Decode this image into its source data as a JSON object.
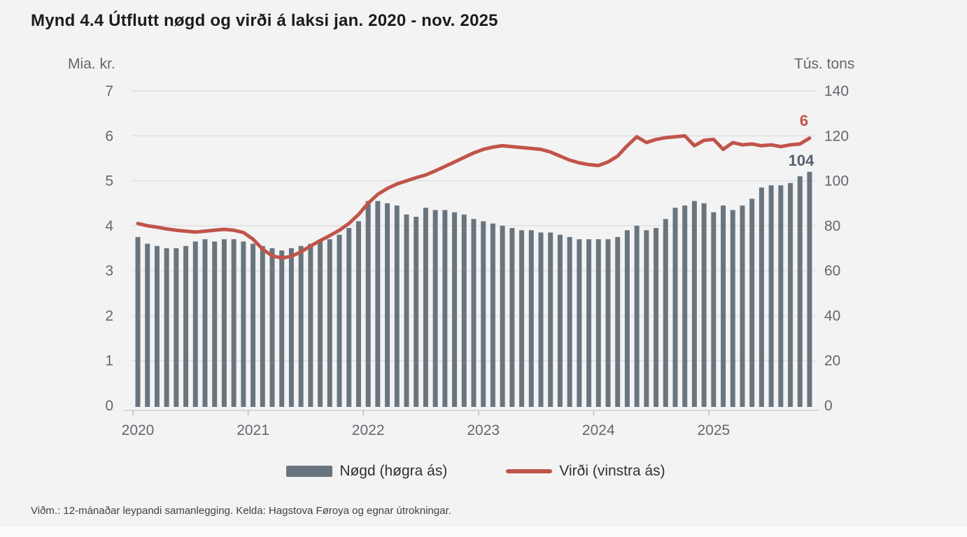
{
  "title": "Mynd 4.4 Útflutt nøgd og virði á laksi jan. 2020 - nov. 2025",
  "footnote": "Viðm.: 12-mánaðar leypandi samanlegging. Kelda: Hagstova Føroya og egnar útrokningar.",
  "colors": {
    "background": "#f3f3f4",
    "grid": "#e4e4e6",
    "baseline": "#d7d7d9",
    "bar": "#69757e",
    "line": "#c1544a",
    "tick_text": "#63676c",
    "bar_end_label": "#56616e",
    "line_end_label": "#c1544a"
  },
  "chart_data": {
    "type": "bar+line combo",
    "title": "Mynd 4.4 Útflutt nøgd og virði á laksi jan. 2020 - nov. 2025",
    "period": "jan. 2020 - nov. 2025",
    "months_count": 71,
    "x_year_labels": [
      "2020",
      "2021",
      "2022",
      "2023",
      "2024",
      "2025"
    ],
    "left_axis": {
      "label": "Mia. kr.",
      "range": [
        0,
        7
      ],
      "ticks": [
        0,
        1,
        2,
        3,
        4,
        5,
        6,
        7
      ]
    },
    "right_axis": {
      "label": "Tús. tons",
      "range": [
        0,
        140
      ],
      "ticks": [
        0,
        20,
        40,
        60,
        80,
        100,
        120,
        140
      ]
    },
    "grid": "horizontal only",
    "legend_position": "bottom center",
    "series": [
      {
        "name": "Nøgd (høgra ás)",
        "type": "bar",
        "axis": "right",
        "color": "#69757e",
        "end_label": "104",
        "values": [
          75,
          72,
          71,
          70,
          70,
          71,
          73,
          74,
          73,
          74,
          74,
          73,
          72,
          71,
          70,
          69,
          70,
          71,
          72,
          73,
          74,
          76,
          79,
          82,
          91,
          91,
          90,
          89,
          85,
          84,
          88,
          87,
          87,
          86,
          85,
          83,
          82,
          81,
          80,
          79,
          78,
          78,
          77,
          77,
          76,
          75,
          74,
          74,
          74,
          74,
          75,
          78,
          80,
          78,
          79,
          83,
          88,
          89,
          91,
          90,
          86,
          89,
          87,
          89,
          92,
          97,
          98,
          98,
          99,
          102,
          104
        ]
      },
      {
        "name": "Virði (vinstra ás)",
        "type": "line",
        "axis": "left",
        "color": "#c1544a",
        "end_label": "6",
        "values": [
          4.05,
          4.0,
          3.97,
          3.93,
          3.9,
          3.88,
          3.86,
          3.88,
          3.9,
          3.92,
          3.9,
          3.85,
          3.7,
          3.48,
          3.33,
          3.28,
          3.32,
          3.42,
          3.55,
          3.67,
          3.78,
          3.9,
          4.05,
          4.25,
          4.5,
          4.7,
          4.83,
          4.93,
          5.0,
          5.07,
          5.13,
          5.22,
          5.32,
          5.42,
          5.52,
          5.62,
          5.7,
          5.75,
          5.78,
          5.76,
          5.74,
          5.72,
          5.7,
          5.64,
          5.55,
          5.46,
          5.4,
          5.36,
          5.34,
          5.42,
          5.55,
          5.78,
          5.98,
          5.85,
          5.92,
          5.96,
          5.98,
          6.0,
          5.78,
          5.9,
          5.92,
          5.7,
          5.85,
          5.8,
          5.82,
          5.78,
          5.8,
          5.76,
          5.8,
          5.82,
          5.95
        ]
      }
    ]
  }
}
